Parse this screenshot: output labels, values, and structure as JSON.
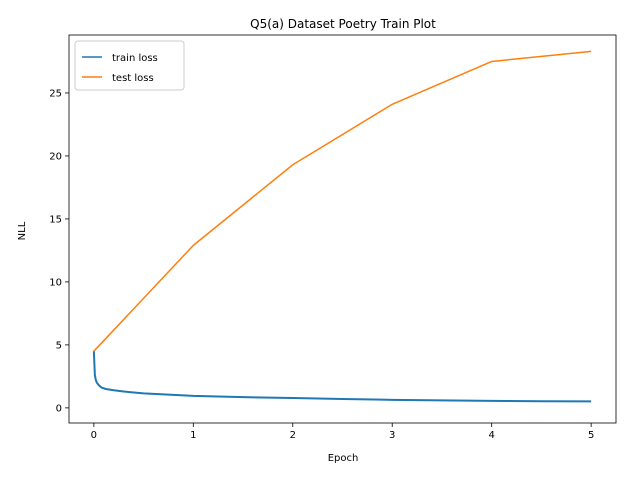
{
  "chart_data": {
    "type": "line",
    "title": "Q5(a) Dataset Poetry Train Plot",
    "xlabel": "Epoch",
    "ylabel": "NLL",
    "xlim": [
      -0.25,
      5.25
    ],
    "ylim": [
      -1.2,
      29.6
    ],
    "xticks": [
      0,
      1,
      2,
      3,
      4,
      5
    ],
    "yticks": [
      0,
      5,
      10,
      15,
      20,
      25
    ],
    "grid": false,
    "legend_position": "top-left",
    "series": [
      {
        "name": "train loss",
        "color": "#1f77b4",
        "x": [
          0.0,
          0.01,
          0.02,
          0.03,
          0.05,
          0.08,
          0.12,
          0.2,
          0.3,
          0.5,
          0.75,
          1.0,
          1.25,
          1.5,
          2.0,
          2.5,
          3.0,
          3.5,
          4.0,
          4.5,
          5.0
        ],
        "y": [
          4.5,
          2.6,
          2.2,
          2.0,
          1.8,
          1.6,
          1.5,
          1.4,
          1.3,
          1.15,
          1.05,
          0.95,
          0.9,
          0.85,
          0.78,
          0.7,
          0.64,
          0.6,
          0.56,
          0.53,
          0.52
        ]
      },
      {
        "name": "test loss",
        "color": "#ff7f0e",
        "x": [
          0,
          1,
          2,
          3,
          4,
          5
        ],
        "y": [
          4.5,
          12.9,
          19.3,
          24.1,
          27.5,
          28.3
        ]
      }
    ]
  }
}
